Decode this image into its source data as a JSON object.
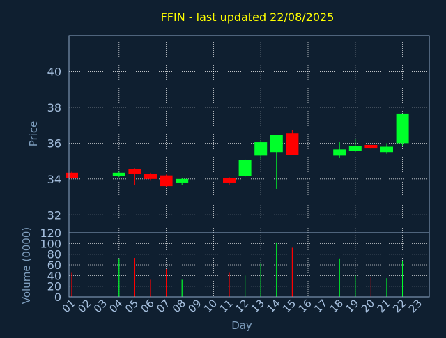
{
  "chart_data": {
    "type": "candlestick",
    "title": "FFIN - last updated 22/08/2025",
    "xlabel": "Day",
    "grid": true,
    "price_panel": {
      "ylabel": "Price",
      "ylim": [
        31.0,
        42.0
      ],
      "yticks": [
        32,
        34,
        36,
        38,
        40
      ]
    },
    "volume_panel": {
      "ylabel": "Volume (0000)",
      "ylim": [
        0,
        120
      ],
      "yticks": [
        0,
        20,
        40,
        60,
        80,
        100,
        120
      ]
    },
    "x_ticks": [
      "01",
      "02",
      "03",
      "04",
      "05",
      "06",
      "07",
      "08",
      "09",
      "10",
      "11",
      "12",
      "13",
      "14",
      "15",
      "16",
      "17",
      "18",
      "19",
      "20",
      "21",
      "22",
      "23"
    ],
    "candles": [
      {
        "day": 1,
        "open": 34.35,
        "close": 34.05,
        "high": 34.4,
        "low": 34.0,
        "volume": 45
      },
      {
        "day": 4,
        "open": 34.15,
        "close": 34.35,
        "high": 34.4,
        "low": 34.1,
        "volume": 72
      },
      {
        "day": 5,
        "open": 34.55,
        "close": 34.3,
        "high": 34.6,
        "low": 33.65,
        "volume": 73
      },
      {
        "day": 6,
        "open": 34.3,
        "close": 34.0,
        "high": 34.35,
        "low": 33.9,
        "volume": 32
      },
      {
        "day": 7,
        "open": 34.2,
        "close": 33.6,
        "high": 34.25,
        "low": 33.55,
        "volume": 52
      },
      {
        "day": 8,
        "open": 33.8,
        "close": 34.0,
        "high": 34.05,
        "low": 33.65,
        "volume": 32
      },
      {
        "day": 11,
        "open": 34.05,
        "close": 33.8,
        "high": 34.1,
        "low": 33.65,
        "volume": 45
      },
      {
        "day": 12,
        "open": 34.15,
        "close": 35.05,
        "high": 35.1,
        "low": 34.1,
        "volume": 40
      },
      {
        "day": 13,
        "open": 35.3,
        "close": 36.05,
        "high": 36.1,
        "low": 35.1,
        "volume": 62
      },
      {
        "day": 14,
        "open": 35.5,
        "close": 36.45,
        "high": 36.45,
        "low": 33.45,
        "volume": 102
      },
      {
        "day": 15,
        "open": 36.55,
        "close": 35.35,
        "high": 36.75,
        "low": 35.35,
        "volume": 92
      },
      {
        "day": 18,
        "open": 35.3,
        "close": 35.65,
        "high": 36.05,
        "low": 35.2,
        "volume": 72
      },
      {
        "day": 19,
        "open": 35.55,
        "close": 35.85,
        "high": 36.25,
        "low": 35.5,
        "volume": 40
      },
      {
        "day": 20,
        "open": 35.9,
        "close": 35.7,
        "high": 35.95,
        "low": 35.65,
        "volume": 38
      },
      {
        "day": 21,
        "open": 35.5,
        "close": 35.8,
        "high": 36.0,
        "low": 35.4,
        "volume": 35
      },
      {
        "day": 22,
        "open": 36.0,
        "close": 37.65,
        "high": 37.65,
        "low": 35.85,
        "volume": 68
      }
    ]
  },
  "colors": {
    "background": "#0f1f30",
    "up": "#00ff2a",
    "down": "#ff0000",
    "title": "#ffff00",
    "axis_text": "#7f9fbf",
    "tick_text": "#a6c0df",
    "grid": "#ffffff",
    "frame": "#8fa8c8"
  }
}
